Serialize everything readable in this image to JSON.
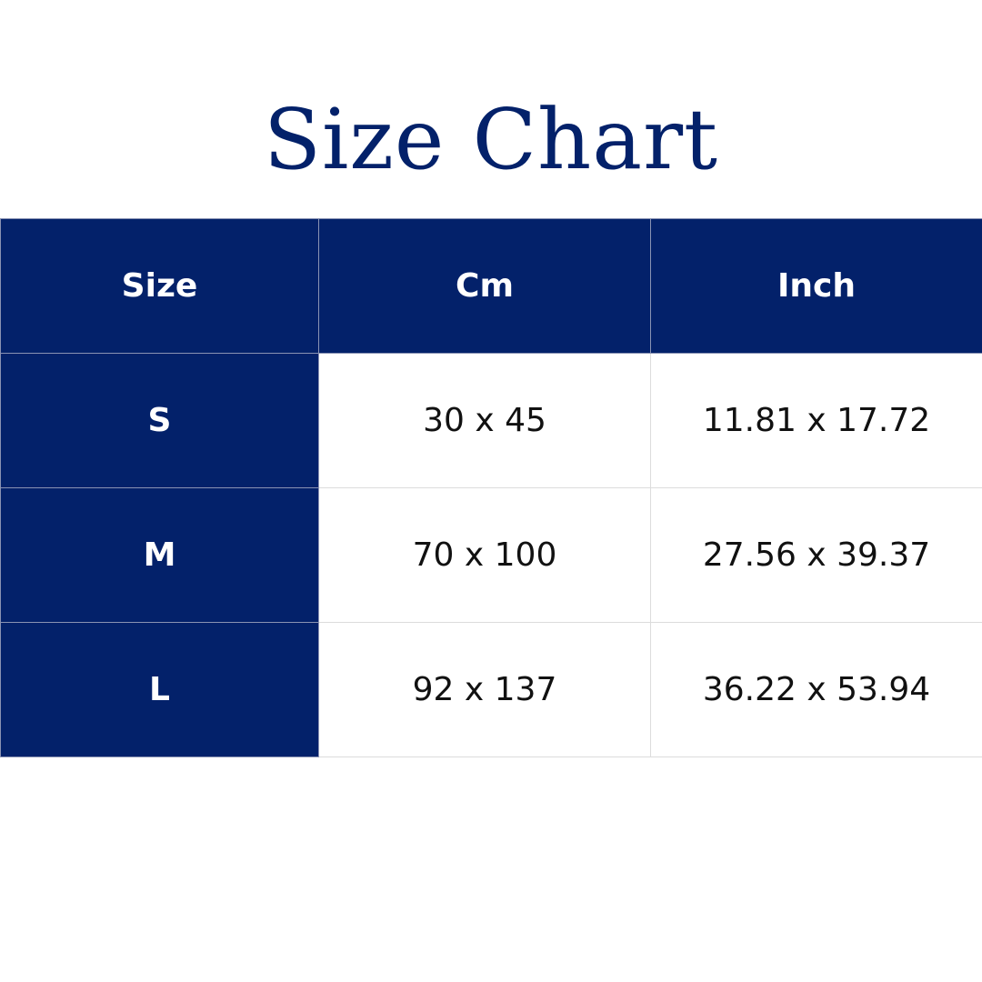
{
  "title": "Size Chart",
  "colors": {
    "accent": "#03216a"
  },
  "table": {
    "headers": [
      "Size",
      "Cm",
      "Inch"
    ],
    "rows": [
      [
        "S",
        "30 x 45",
        "11.81 x 17.72"
      ],
      [
        "M",
        "70 x 100",
        "27.56 x 39.37"
      ],
      [
        "L",
        "92 x 137",
        "36.22 x 53.94"
      ]
    ]
  }
}
